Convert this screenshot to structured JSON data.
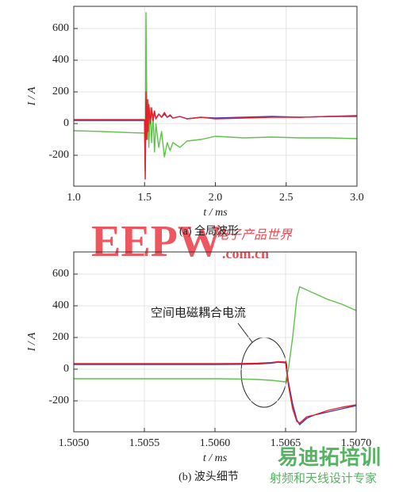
{
  "chart_data": [
    {
      "type": "line",
      "ylabel": "I / A",
      "xlabel": "t / ms",
      "caption": "(a) 全局波形",
      "x": [
        1.0,
        1.2,
        1.4,
        1.5,
        1.505,
        1.51,
        1.515,
        1.52,
        1.525,
        1.53,
        1.54,
        1.55,
        1.56,
        1.57,
        1.58,
        1.6,
        1.62,
        1.64,
        1.66,
        1.68,
        1.7,
        1.75,
        1.8,
        1.9,
        2.0,
        2.2,
        2.4,
        2.6,
        2.8,
        3.0
      ],
      "series": [
        {
          "color": "#5fc24a",
          "values": [
            -45,
            -50,
            -57,
            -60,
            -300,
            700,
            200,
            -100,
            150,
            -150,
            100,
            -120,
            60,
            -180,
            0,
            -150,
            -50,
            -210,
            -120,
            -170,
            -120,
            -150,
            -110,
            -100,
            -80,
            -90,
            -85,
            -90,
            -90,
            -95
          ]
        },
        {
          "color": "#3b3bb0",
          "values": [
            20,
            20,
            20,
            20,
            -300,
            150,
            -80,
            120,
            -30,
            100,
            10,
            80,
            20,
            70,
            30,
            60,
            40,
            60,
            40,
            50,
            35,
            45,
            30,
            40,
            35,
            40,
            45,
            40,
            45,
            50
          ]
        },
        {
          "color": "#e8202a",
          "values": [
            25,
            25,
            25,
            25,
            -350,
            200,
            -100,
            150,
            -50,
            120,
            0,
            100,
            20,
            80,
            30,
            60,
            40,
            70,
            40,
            55,
            35,
            45,
            30,
            40,
            30,
            35,
            40,
            40,
            45,
            45
          ]
        }
      ],
      "xlim": [
        1.0,
        3.0
      ],
      "xticks": [
        {
          "value": 1.0,
          "label": "1.0"
        },
        1.5,
        {
          "value": 2.0,
          "label": "2.0"
        },
        2.5,
        {
          "value": 3.0,
          "label": "3.0"
        }
      ],
      "ylim": [
        -395,
        740
      ],
      "yticks": [
        -200,
        0,
        200,
        400,
        600
      ],
      "grid": true
    },
    {
      "type": "line",
      "ylabel": "I / A",
      "xlabel": "t / ms",
      "caption": "(b) 波头细节",
      "annotation": "空间电磁耦合电流",
      "x": [
        1.505,
        1.5055,
        1.506,
        1.5062,
        1.5063,
        1.5064,
        1.50645,
        1.5065,
        1.50652,
        1.50655,
        1.50658,
        1.5066,
        1.50665,
        1.5067,
        1.5068,
        1.5069,
        1.507
      ],
      "series": [
        {
          "color": "#5fc24a",
          "values": [
            -60,
            -60,
            -60,
            -62,
            -65,
            -70,
            -75,
            -80,
            0,
            200,
            450,
            520,
            500,
            480,
            440,
            410,
            370
          ]
        },
        {
          "color": "#3b3bb0",
          "values": [
            30,
            30,
            30,
            31,
            33,
            38,
            45,
            40,
            -80,
            -220,
            -320,
            -350,
            -310,
            -290,
            -270,
            -250,
            -230
          ]
        },
        {
          "color": "#e8202a",
          "values": [
            35,
            35,
            35,
            36,
            38,
            42,
            48,
            45,
            -100,
            -250,
            -330,
            -340,
            -300,
            -290,
            -260,
            -240,
            -225
          ]
        }
      ],
      "xlim": [
        1.505,
        1.507
      ],
      "xticks": [
        {
          "value": 1.505,
          "label": "1.5050"
        },
        {
          "value": 1.5055,
          "label": "1.5055"
        },
        {
          "value": 1.506,
          "label": "1.5060"
        },
        {
          "value": 1.5065,
          "label": "1.5065"
        },
        {
          "value": 1.507,
          "label": "1.5070"
        }
      ],
      "ylim": [
        -395,
        740
      ],
      "yticks": [
        -200,
        0,
        200,
        400,
        600
      ],
      "grid": true
    }
  ],
  "watermarks": [
    "EEPW",
    "电子产品世界",
    ".com.cn",
    "易迪拓培训",
    "射频和天线设计专家"
  ]
}
